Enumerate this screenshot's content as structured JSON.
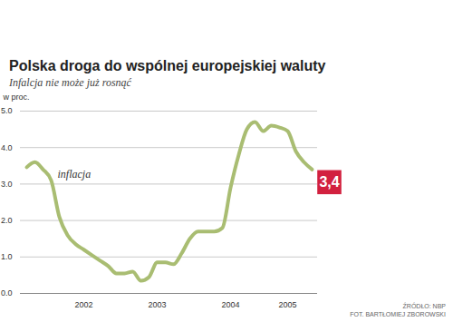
{
  "chart_data": {
    "type": "line",
    "title": "Polska droga do wspólnej europejskiej waluty",
    "subtitle": "Infalcja nie może już rosnąć",
    "y_label": "w proc.",
    "categories": [
      null,
      null,
      null,
      null,
      null,
      null,
      null,
      "2002",
      null,
      null,
      null,
      null,
      null,
      null,
      null,
      null,
      "2003",
      null,
      null,
      null,
      null,
      null,
      null,
      null,
      null,
      "2004",
      null,
      null,
      null,
      null,
      null,
      null,
      "2005",
      null,
      null,
      null
    ],
    "series": [
      {
        "name": "inflacja",
        "color": "#a9bd72",
        "values": [
          3.46,
          3.6,
          3.4,
          3.1,
          2.1,
          1.6,
          1.35,
          1.2,
          1.05,
          0.9,
          0.75,
          0.55,
          0.55,
          0.6,
          0.35,
          0.45,
          0.85,
          0.85,
          0.8,
          1.1,
          1.5,
          1.7,
          1.7,
          1.7,
          1.8,
          2.9,
          3.8,
          4.5,
          4.7,
          4.45,
          4.6,
          4.55,
          4.45,
          3.9,
          3.6,
          3.4
        ]
      }
    ],
    "annotation": "3,4",
    "ylim": [
      0,
      5
    ],
    "yticks": [
      0,
      1,
      2,
      3,
      4,
      5
    ],
    "grid": true,
    "source": "ŹRÓDŁO: NBP",
    "credit": "FOT. BARTŁOMIEJ ZBOROWSKI"
  }
}
